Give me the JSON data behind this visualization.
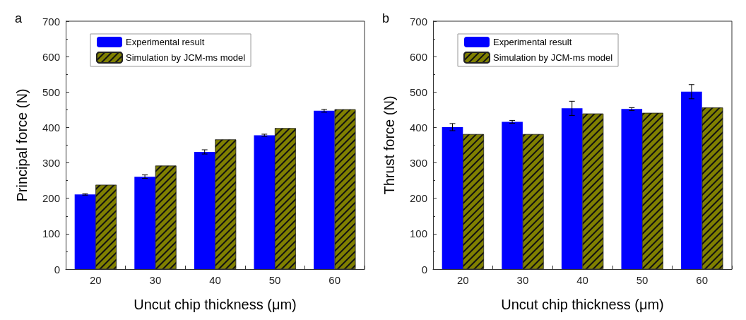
{
  "chart_data": [
    {
      "type": "bar",
      "title": "a",
      "xlabel": "Uncut chip thickness (μm)",
      "ylabel": "Principal force (N)",
      "categories": [
        "20",
        "30",
        "40",
        "50",
        "60"
      ],
      "series": [
        {
          "name": "Experimental result",
          "color": "#0000ff",
          "values": [
            211,
            261,
            331,
            378,
            447
          ],
          "errors": [
            2,
            5,
            6,
            3,
            4
          ]
        },
        {
          "name": "Simulation by JCM-ms model",
          "color": "#808000",
          "values": [
            238,
            292,
            366,
            398,
            451
          ]
        }
      ],
      "ylim": [
        0,
        700
      ],
      "yticks": [
        0,
        100,
        200,
        300,
        400,
        500,
        600,
        700
      ],
      "legend": "top left"
    },
    {
      "type": "bar",
      "title": "b",
      "xlabel": "Uncut chip thickness (μm)",
      "ylabel": "Thrust force (N)",
      "categories": [
        "20",
        "30",
        "40",
        "50",
        "60"
      ],
      "series": [
        {
          "name": "Experimental result",
          "color": "#0000ff",
          "values": [
            401,
            416,
            454,
            452,
            501
          ],
          "errors": [
            10,
            4,
            20,
            4,
            20
          ]
        },
        {
          "name": "Simulation by JCM-ms model",
          "color": "#808000",
          "values": [
            381,
            381,
            439,
            441,
            456
          ]
        }
      ],
      "ylim": [
        0,
        700
      ],
      "yticks": [
        0,
        100,
        200,
        300,
        400,
        500,
        600,
        700
      ],
      "legend": "top left"
    }
  ]
}
